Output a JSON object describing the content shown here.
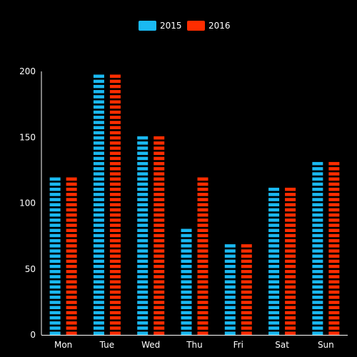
{
  "chart_data": {
    "type": "bar",
    "categories": [
      "Mon",
      "Tue",
      "Wed",
      "Thu",
      "Fri",
      "Sat",
      "Sun"
    ],
    "series": [
      {
        "name": "2015",
        "values": [
          123,
          200,
          153,
          84,
          71,
          114,
          131
        ]
      },
      {
        "name": "2016",
        "values": [
          123,
          200,
          153,
          123,
          71,
          114,
          131
        ]
      }
    ],
    "ylim": [
      0,
      200
    ],
    "yticks": [
      0,
      50,
      100,
      150,
      200
    ],
    "grid": false,
    "legend_position": "top-center",
    "colors": [
      "#1ab9f2",
      "#ff2d00"
    ],
    "bar_style": "dashed-segments",
    "background": "#000000",
    "axis_color": "#ffffff"
  }
}
